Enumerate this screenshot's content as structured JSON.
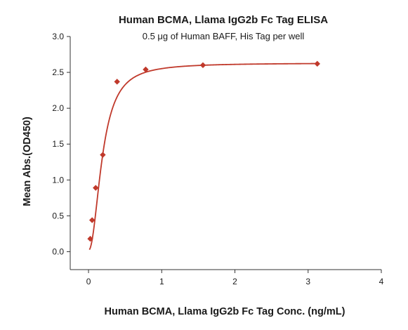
{
  "chart_data": {
    "type": "scatter",
    "title": "Human BCMA, Llama IgG2b Fc Tag ELISA",
    "subtitle": "0.5 μg of Human BAFF, His Tag per well",
    "xlabel": "Human BCMA, Llama IgG2b Fc Tag Conc. (ng/mL)",
    "ylabel": "Mean Abs.(OD450)",
    "xlim": [
      -0.25,
      4
    ],
    "ylim": [
      -0.25,
      3.0
    ],
    "x_ticks": [
      0,
      1,
      2,
      3,
      4
    ],
    "y_ticks": [
      0.0,
      0.5,
      1.0,
      1.5,
      2.0,
      2.5,
      3.0
    ],
    "x_tick_labels": [
      "0",
      "1",
      "2",
      "3",
      "4"
    ],
    "y_tick_labels": [
      "0.0",
      "0.5",
      "1.0",
      "1.5",
      "2.0",
      "2.5",
      "3.0"
    ],
    "grid": false,
    "marker": "diamond",
    "color": "#c0392b",
    "series": [
      {
        "x": [
          0.024,
          0.049,
          0.098,
          0.195,
          0.39,
          0.781,
          1.563,
          3.125
        ],
        "y": [
          0.18,
          0.44,
          0.89,
          1.35,
          2.37,
          2.54,
          2.6,
          2.62
        ],
        "fit": "four-parameter-logistic"
      }
    ]
  }
}
